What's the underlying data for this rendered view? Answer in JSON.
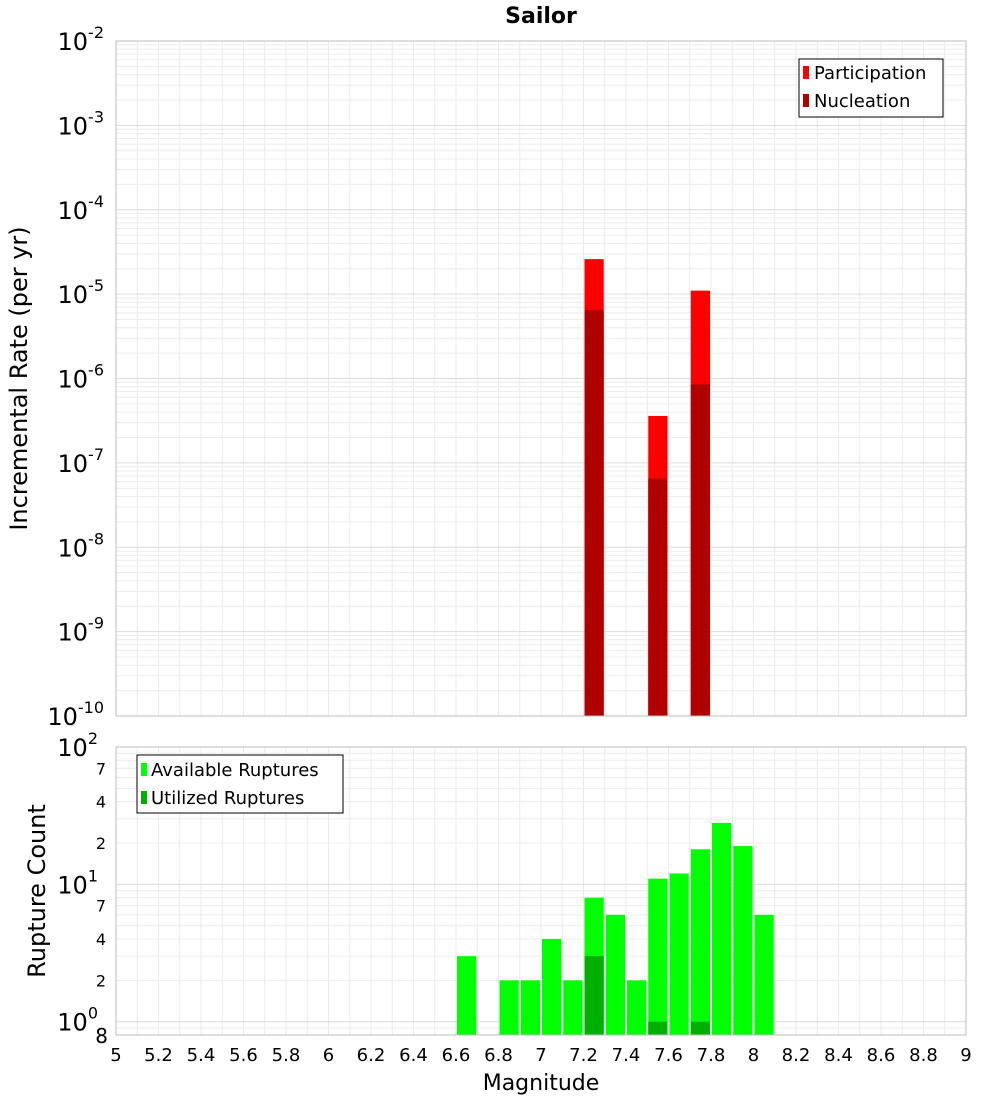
{
  "chart_data": [
    {
      "id": "rate",
      "type": "bar",
      "title": "Sailor",
      "xlabel": "",
      "ylabel": "Incremental Rate (per yr)",
      "yscale": "log",
      "ylim": [
        1e-10,
        0.01
      ],
      "xlim": [
        5,
        9
      ],
      "y_tick_exponents": [
        "-10",
        "-9",
        "-8",
        "-7",
        "-6",
        "-5",
        "-4",
        "-3",
        "-2"
      ],
      "y_tick_base": "10",
      "bin_width": 0.1,
      "legend": {
        "position": "top-right",
        "entries": [
          "Participation",
          "Nucleation"
        ]
      },
      "series": [
        {
          "name": "Participation",
          "color": "#ff0000",
          "x": [
            7.25,
            7.55,
            7.75
          ],
          "values": [
            2.6e-05,
            3.6e-07,
            1.1e-05
          ]
        },
        {
          "name": "Nucleation",
          "color": "#b00000",
          "x": [
            7.25,
            7.55,
            7.75
          ],
          "values": [
            6.5e-06,
            6.5e-08,
            8.5e-07
          ]
        }
      ]
    },
    {
      "id": "count",
      "type": "bar",
      "title": "",
      "xlabel": "Magnitude",
      "ylabel": "Rupture Count",
      "yscale": "log",
      "ylim": [
        0.8,
        100
      ],
      "xlim": [
        5,
        9
      ],
      "x_ticks": [
        "5",
        "5.2",
        "5.4",
        "5.6",
        "5.8",
        "6",
        "6.2",
        "6.4",
        "6.6",
        "6.8",
        "7",
        "7.2",
        "7.4",
        "7.6",
        "7.8",
        "8",
        "8.2",
        "8.4",
        "8.6",
        "8.8",
        "9"
      ],
      "y_major_exponents": [
        "0",
        "1",
        "2"
      ],
      "y_tick_base": "10",
      "y_minor_labels": [
        "8",
        "2",
        "4",
        "7",
        "2",
        "4",
        "7"
      ],
      "y_minor_values": [
        0.8,
        2,
        4,
        7,
        20,
        40,
        70
      ],
      "bin_width": 0.1,
      "legend": {
        "position": "top-left",
        "entries": [
          "Available Ruptures",
          "Utilized Ruptures"
        ]
      },
      "series": [
        {
          "name": "Available Ruptures",
          "color": "#00ff00",
          "x": [
            6.65,
            6.85,
            6.95,
            7.05,
            7.15,
            7.25,
            7.35,
            7.45,
            7.55,
            7.65,
            7.75,
            7.85,
            7.95,
            8.05
          ],
          "values": [
            3,
            2,
            2,
            4,
            2,
            8,
            6,
            2,
            11,
            12,
            18,
            28,
            19,
            6
          ]
        },
        {
          "name": "Utilized Ruptures",
          "color": "#00b000",
          "x": [
            7.25,
            7.55,
            7.75
          ],
          "values": [
            3,
            1,
            1
          ]
        }
      ]
    }
  ]
}
